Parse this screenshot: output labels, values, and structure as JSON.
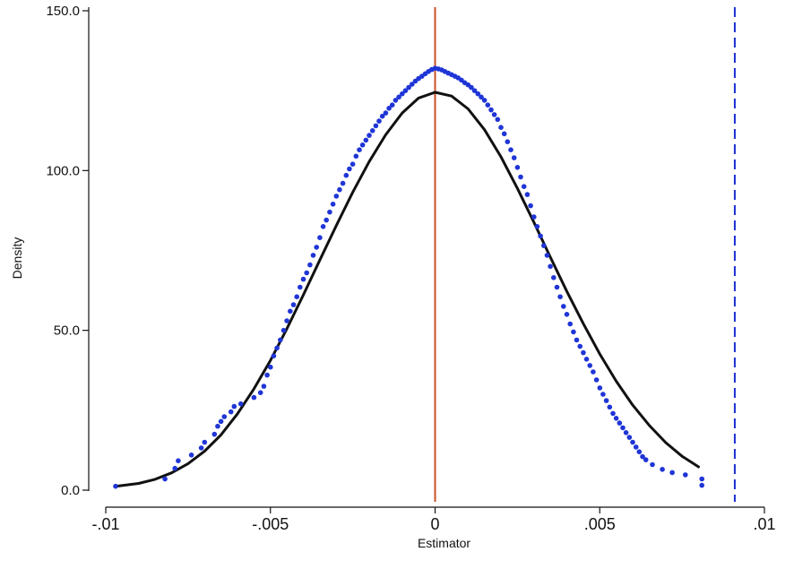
{
  "chart_data": {
    "type": "scatter",
    "xlabel": "Estimator",
    "ylabel": "Density",
    "xlim": [
      -0.01,
      0.01
    ],
    "ylim": [
      0,
      150
    ],
    "x_ticks": [
      {
        "value": -0.01,
        "label": "-.01"
      },
      {
        "value": -0.005,
        "label": "-.005"
      },
      {
        "value": 0,
        "label": "0"
      },
      {
        "value": 0.005,
        "label": ".005"
      },
      {
        "value": 0.01,
        "label": ".01"
      }
    ],
    "y_ticks": [
      {
        "value": 0,
        "label": "0.0"
      },
      {
        "value": 50,
        "label": "50.0"
      },
      {
        "value": 100,
        "label": "100.0"
      },
      {
        "value": 150,
        "label": "150.0"
      }
    ],
    "grid": false,
    "legend": "none",
    "reference_lines": [
      {
        "x": 0,
        "style": "solid",
        "color": "#c8502a"
      },
      {
        "x": 0.0091,
        "style": "dashed",
        "color": "#1a2fd0"
      }
    ],
    "fitted_curve": {
      "color": "#111111",
      "points": [
        [
          -0.0097,
          1.2
        ],
        [
          -0.009,
          2.1
        ],
        [
          -0.0085,
          3.4
        ],
        [
          -0.008,
          5.4
        ],
        [
          -0.0075,
          8.3
        ],
        [
          -0.007,
          12.2
        ],
        [
          -0.0065,
          17.3
        ],
        [
          -0.006,
          23.9
        ],
        [
          -0.0055,
          31.7
        ],
        [
          -0.005,
          40.6
        ],
        [
          -0.0045,
          50.5
        ],
        [
          -0.004,
          61.1
        ],
        [
          -0.0035,
          72.0
        ],
        [
          -0.003,
          82.8
        ],
        [
          -0.0025,
          93.2
        ],
        [
          -0.002,
          102.8
        ],
        [
          -0.0015,
          111.2
        ],
        [
          -0.001,
          118.0
        ],
        [
          -0.0005,
          122.7
        ],
        [
          0.0,
          124.5
        ],
        [
          0.0005,
          123.3
        ],
        [
          0.001,
          119.3
        ],
        [
          0.0015,
          112.8
        ],
        [
          0.002,
          104.3
        ],
        [
          0.0025,
          94.4
        ],
        [
          0.003,
          83.8
        ],
        [
          0.0035,
          72.9
        ],
        [
          0.004,
          62.2
        ],
        [
          0.0045,
          52.1
        ],
        [
          0.005,
          42.6
        ],
        [
          0.0055,
          34.1
        ],
        [
          0.006,
          26.6
        ],
        [
          0.0065,
          20.3
        ],
        [
          0.007,
          14.9
        ],
        [
          0.0075,
          10.6
        ],
        [
          0.008,
          7.3
        ]
      ]
    },
    "points": {
      "color": "#1f35d6",
      "values": [
        [
          -0.0097,
          1.2
        ],
        [
          -0.0082,
          3.5
        ],
        [
          -0.0079,
          6.8
        ],
        [
          -0.0078,
          9.2
        ],
        [
          -0.0074,
          11.0
        ],
        [
          -0.0071,
          13.2
        ],
        [
          -0.007,
          15.0
        ],
        [
          -0.0067,
          17.5
        ],
        [
          -0.0066,
          20.0
        ],
        [
          -0.0065,
          21.5
        ],
        [
          -0.0064,
          23.0
        ],
        [
          -0.0062,
          24.5
        ],
        [
          -0.0061,
          26.2
        ],
        [
          -0.0059,
          27.0
        ],
        [
          -0.0055,
          29.0
        ],
        [
          -0.0053,
          30.5
        ],
        [
          -0.0052,
          32.5
        ],
        [
          -0.0051,
          36.0
        ],
        [
          -0.005,
          38.5
        ],
        [
          -0.0049,
          42.0
        ],
        [
          -0.0048,
          44.5
        ],
        [
          -0.0047,
          47.0
        ],
        [
          -0.0046,
          50.0
        ],
        [
          -0.0045,
          53.0
        ],
        [
          -0.0044,
          56.0
        ],
        [
          -0.0043,
          58.0
        ],
        [
          -0.0042,
          60.5
        ],
        [
          -0.0041,
          63.5
        ],
        [
          -0.004,
          66.0
        ],
        [
          -0.0039,
          68.0
        ],
        [
          -0.0038,
          70.5
        ],
        [
          -0.0037,
          73.5
        ],
        [
          -0.0036,
          76.0
        ],
        [
          -0.0035,
          79.0
        ],
        [
          -0.0034,
          82.5
        ],
        [
          -0.0033,
          84.5
        ],
        [
          -0.0032,
          87.0
        ],
        [
          -0.0031,
          89.5
        ],
        [
          -0.003,
          92.0
        ],
        [
          -0.0029,
          94.0
        ],
        [
          -0.0028,
          96.0
        ],
        [
          -0.0027,
          98.5
        ],
        [
          -0.0026,
          100.5
        ],
        [
          -0.0025,
          102.0
        ],
        [
          -0.0024,
          104.5
        ],
        [
          -0.0023,
          106.5
        ],
        [
          -0.0022,
          108.0
        ],
        [
          -0.0021,
          109.5
        ],
        [
          -0.002,
          111.0
        ],
        [
          -0.0019,
          112.5
        ],
        [
          -0.0018,
          114.0
        ],
        [
          -0.0017,
          115.5
        ],
        [
          -0.0016,
          117.0
        ],
        [
          -0.0015,
          118.0
        ],
        [
          -0.0014,
          119.5
        ],
        [
          -0.0013,
          120.5
        ],
        [
          -0.0012,
          122.0
        ],
        [
          -0.0011,
          123.0
        ],
        [
          -0.001,
          124.0
        ],
        [
          -0.0009,
          125.0
        ],
        [
          -0.0008,
          126.0
        ],
        [
          -0.0007,
          127.0
        ],
        [
          -0.0006,
          128.0
        ],
        [
          -0.0005,
          128.8
        ],
        [
          -0.0004,
          129.5
        ],
        [
          -0.0003,
          130.3
        ],
        [
          -0.0002,
          131.0
        ],
        [
          -0.0001,
          131.6
        ],
        [
          0.0,
          132.0
        ],
        [
          0.0001,
          131.8
        ],
        [
          0.0002,
          131.5
        ],
        [
          0.0003,
          131.0
        ],
        [
          0.0004,
          130.5
        ],
        [
          0.0005,
          130.0
        ],
        [
          0.0006,
          129.5
        ],
        [
          0.0007,
          129.0
        ],
        [
          0.0008,
          128.3
        ],
        [
          0.0009,
          127.5
        ],
        [
          0.001,
          126.8
        ],
        [
          0.0011,
          126.0
        ],
        [
          0.0012,
          125.0
        ],
        [
          0.0013,
          124.0
        ],
        [
          0.0014,
          123.0
        ],
        [
          0.0015,
          122.0
        ],
        [
          0.0016,
          120.5
        ],
        [
          0.0017,
          119.0
        ],
        [
          0.0018,
          117.5
        ],
        [
          0.0019,
          116.0
        ],
        [
          0.002,
          113.5
        ],
        [
          0.0021,
          111.5
        ],
        [
          0.0022,
          109.0
        ],
        [
          0.0023,
          106.5
        ],
        [
          0.0024,
          104.0
        ],
        [
          0.0025,
          101.0
        ],
        [
          0.0026,
          98.0
        ],
        [
          0.0027,
          95.0
        ],
        [
          0.0028,
          92.5
        ],
        [
          0.0029,
          89.0
        ],
        [
          0.003,
          85.5
        ],
        [
          0.0031,
          82.5
        ],
        [
          0.0032,
          79.5
        ],
        [
          0.0033,
          76.5
        ],
        [
          0.0034,
          73.5
        ],
        [
          0.0035,
          70.0
        ],
        [
          0.0036,
          66.5
        ],
        [
          0.0037,
          63.5
        ],
        [
          0.0038,
          60.5
        ],
        [
          0.0039,
          57.5
        ],
        [
          0.004,
          55.0
        ],
        [
          0.0041,
          52.0
        ],
        [
          0.0042,
          49.5
        ],
        [
          0.0043,
          47.0
        ],
        [
          0.0044,
          45.0
        ],
        [
          0.0045,
          43.0
        ],
        [
          0.0046,
          41.0
        ],
        [
          0.0047,
          39.0
        ],
        [
          0.0048,
          37.0
        ],
        [
          0.0049,
          34.5
        ],
        [
          0.005,
          32.0
        ],
        [
          0.0051,
          30.0
        ],
        [
          0.0052,
          28.0
        ],
        [
          0.0053,
          26.0
        ],
        [
          0.0054,
          24.0
        ],
        [
          0.0055,
          22.5
        ],
        [
          0.0056,
          21.0
        ],
        [
          0.0057,
          19.5
        ],
        [
          0.0058,
          18.0
        ],
        [
          0.0059,
          16.5
        ],
        [
          0.006,
          15.0
        ],
        [
          0.0061,
          13.5
        ],
        [
          0.0062,
          12.0
        ],
        [
          0.0063,
          10.5
        ],
        [
          0.0064,
          9.5
        ],
        [
          0.0066,
          8.0
        ],
        [
          0.0069,
          6.5
        ],
        [
          0.0072,
          5.5
        ],
        [
          0.0076,
          4.8
        ],
        [
          0.0081,
          3.5
        ],
        [
          0.0081,
          1.5
        ]
      ]
    }
  }
}
